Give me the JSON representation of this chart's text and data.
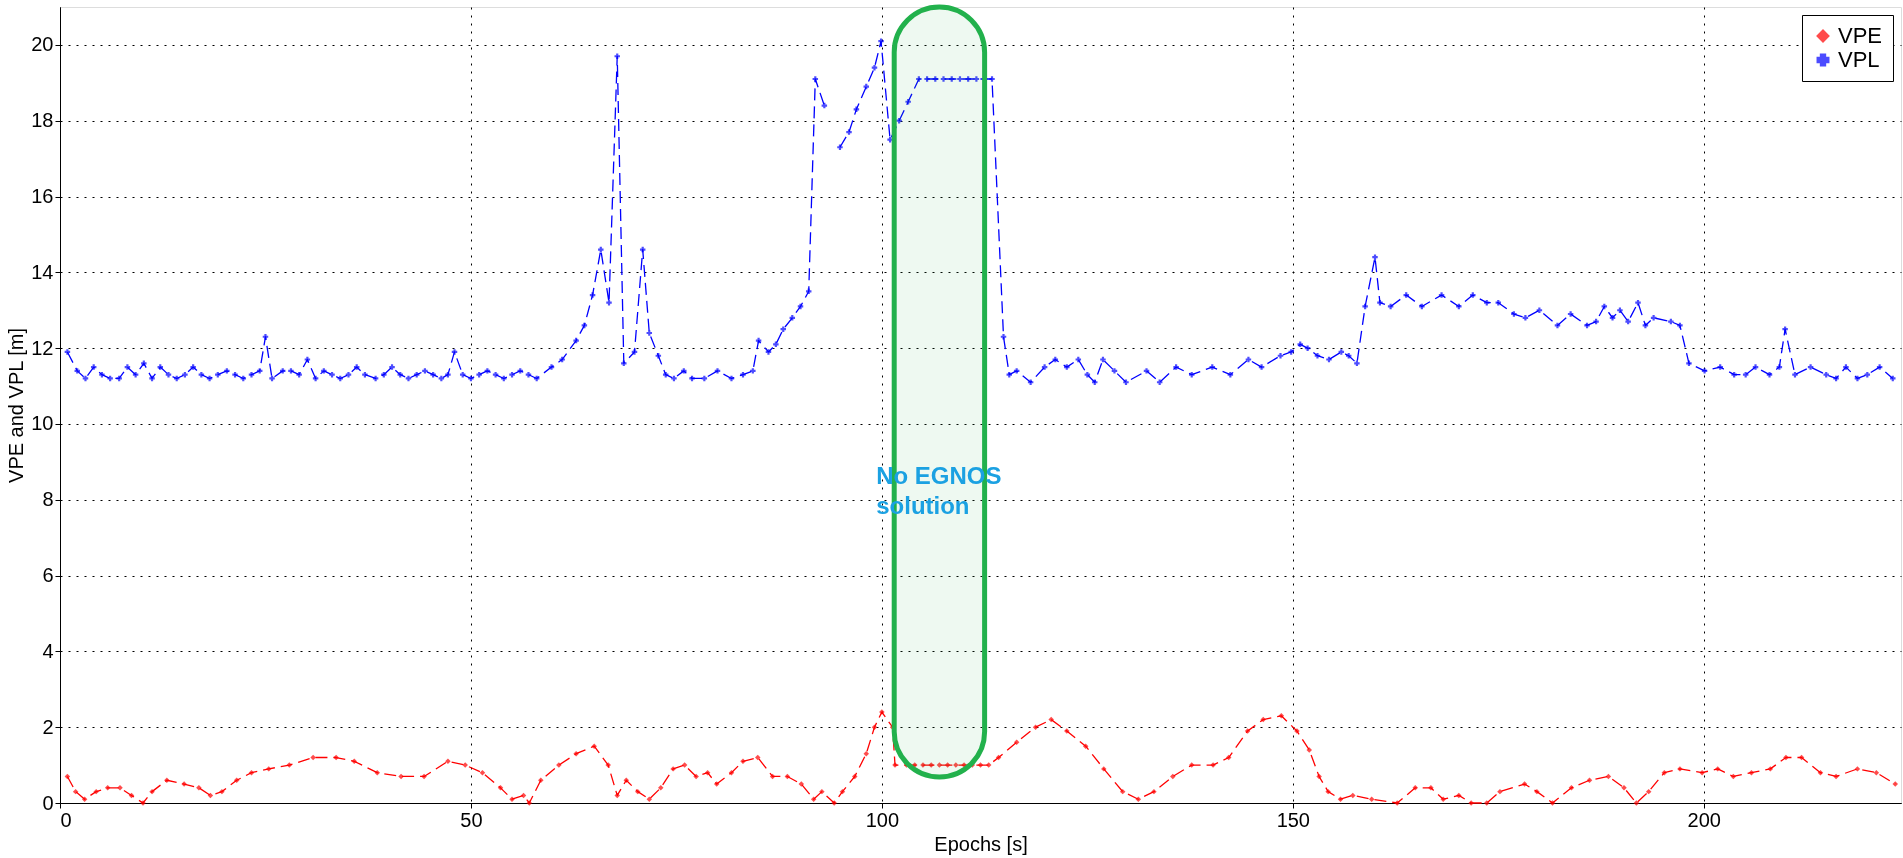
{
  "chart_data": {
    "type": "line",
    "xlabel": "Epochs [s]",
    "ylabel": "VPE and VPL [m]",
    "xlim": [
      0,
      224
    ],
    "xticks": [
      0,
      50,
      100,
      150,
      200
    ],
    "ylim": [
      0,
      21
    ],
    "yticks": [
      0,
      2,
      4,
      6,
      8,
      10,
      12,
      14,
      16,
      18,
      20
    ],
    "grid": true,
    "legend": "top right",
    "line_style": "dashed",
    "bands": [
      {
        "axis": "x",
        "from": 101.5,
        "to": 112.5,
        "label": "No EGNOS solution",
        "color": "#22b14c"
      }
    ],
    "series": [
      {
        "name": "VPE",
        "color": "#ff0000",
        "marker": "diamond",
        "x": [
          0.9,
          1.9,
          3.0,
          4.4,
          5.8,
          7.3,
          8.7,
          10.1,
          11.2,
          13.0,
          15.1,
          16.9,
          18.3,
          19.7,
          21.5,
          23.3,
          25.4,
          27.9,
          30.8,
          33.6,
          35.8,
          38.6,
          41.5,
          44.3,
          47.2,
          49.3,
          51.4,
          53.6,
          55.0,
          56.4,
          57.1,
          58.5,
          60.7,
          62.8,
          65.0,
          66.7,
          67.8,
          68.9,
          70.3,
          71.7,
          73.1,
          74.6,
          76.0,
          77.4,
          78.8,
          79.9,
          81.7,
          83.1,
          84.9,
          86.7,
          88.5,
          90.2,
          91.7,
          92.7,
          94.2,
          95.2,
          96.7,
          98.1,
          99.1,
          100.0,
          101.3,
          101.6,
          103,
          104,
          105,
          106,
          107,
          108,
          109,
          110,
          111,
          112,
          113,
          114.2,
          116.4,
          118.7,
          120.6,
          122.5,
          124.8,
          127.0,
          129.3,
          131.2,
          133.1,
          135.4,
          137.7,
          140.3,
          142.2,
          144.5,
          146.4,
          148.6,
          150.5,
          152.0,
          153.2,
          154.3,
          155.8,
          157.3,
          159.6,
          162.7,
          164.9,
          166.8,
          168.3,
          170.2,
          171.7,
          173.6,
          175.2,
          178.2,
          179.7,
          181.6,
          183.9,
          186.1,
          188.4,
          190.3,
          191.8,
          193.3,
          195.2,
          197.1,
          199.8,
          201.7,
          203.6,
          205.8,
          208.1,
          210.0,
          211.9,
          214.2,
          216.1,
          218.7,
          221.0,
          223.3
        ],
        "values": [
          0.7,
          0.3,
          0.1,
          0.3,
          0.4,
          0.4,
          0.2,
          0.0,
          0.3,
          0.6,
          0.5,
          0.4,
          0.2,
          0.3,
          0.6,
          0.8,
          0.9,
          1.0,
          1.2,
          1.2,
          1.1,
          0.8,
          0.7,
          0.7,
          1.1,
          1.0,
          0.8,
          0.4,
          0.1,
          0.2,
          0.0,
          0.6,
          1.0,
          1.3,
          1.5,
          1.0,
          0.2,
          0.6,
          0.3,
          0.1,
          0.4,
          0.9,
          1.0,
          0.7,
          0.8,
          0.5,
          0.8,
          1.1,
          1.2,
          0.7,
          0.7,
          0.5,
          0.1,
          0.3,
          0.0,
          0.3,
          0.7,
          1.3,
          2.0,
          2.4,
          2.0,
          1.0,
          1.0,
          1.0,
          1.0,
          1.0,
          1.0,
          1.0,
          1.0,
          1.0,
          1.0,
          1.0,
          1.0,
          1.2,
          1.6,
          2.0,
          2.2,
          1.9,
          1.5,
          0.9,
          0.3,
          0.1,
          0.3,
          0.7,
          1.0,
          1.0,
          1.2,
          1.9,
          2.2,
          2.3,
          1.9,
          1.4,
          0.7,
          0.3,
          0.1,
          0.2,
          0.1,
          0.0,
          0.4,
          0.4,
          0.1,
          0.2,
          0.0,
          0.0,
          0.3,
          0.5,
          0.3,
          0.0,
          0.4,
          0.6,
          0.7,
          0.4,
          0.0,
          0.3,
          0.8,
          0.9,
          0.8,
          0.9,
          0.7,
          0.8,
          0.9,
          1.2,
          1.2,
          0.8,
          0.7,
          0.9,
          0.8,
          0.5
        ]
      },
      {
        "name": "VPL",
        "color": "#0000ff",
        "marker": "cross",
        "x": [
          0.9,
          2.1,
          3.1,
          4.1,
          5.1,
          6.1,
          7.2,
          8.2,
          9.2,
          10.2,
          11.2,
          12.2,
          13.2,
          14.2,
          15.2,
          16.2,
          17.2,
          18.2,
          19.2,
          20.3,
          21.3,
          22.3,
          23.3,
          24.3,
          25.0,
          25.8,
          27.1,
          28.1,
          29.1,
          30.1,
          31.1,
          32.1,
          33.1,
          34.1,
          35.1,
          36.1,
          37.1,
          38.4,
          39.4,
          40.4,
          41.4,
          42.4,
          43.4,
          44.4,
          45.4,
          46.4,
          47.2,
          48.0,
          49.0,
          50.0,
          51.0,
          52.0,
          53.0,
          54.0,
          55.0,
          56.0,
          57.0,
          58.0,
          59.8,
          61.1,
          62.8,
          63.8,
          64.8,
          65.8,
          66.8,
          67.8,
          68.6,
          69.9,
          70.9,
          71.7,
          72.8,
          73.7,
          74.7,
          75.9,
          76.9,
          78.4,
          80.0,
          81.7,
          83.1,
          84.3,
          85.0,
          86.2,
          87.1,
          88.0,
          89.1,
          90.1,
          91.1,
          91.9,
          93.0,
          93.5,
          94.9,
          96.0,
          96.9,
          98.1,
          99.1,
          99.9,
          101.0,
          102.1,
          103.2,
          104.5,
          105.5,
          106.5,
          107.5,
          108.5,
          109.5,
          110.5,
          111.5,
          112.5,
          113.4,
          114.8,
          115.5,
          116.4,
          118.1,
          119.8,
          121.1,
          122.5,
          123.9,
          125.0,
          125.9,
          126.9,
          128.3,
          129.7,
          132.2,
          133.8,
          135.8,
          137.7,
          140.2,
          142.4,
          144.6,
          146.2,
          148.5,
          149.8,
          150.9,
          151.8,
          153.0,
          154.4,
          155.9,
          156.8,
          157.8,
          158.8,
          160.0,
          160.6,
          161.9,
          163.8,
          165.7,
          168.1,
          170.2,
          171.9,
          173.6,
          175.0,
          176.9,
          178.3,
          180.0,
          182.2,
          183.8,
          185.8,
          186.9,
          187.9,
          188.9,
          189.8,
          190.8,
          192.0,
          192.9,
          193.9,
          196.0,
          197.1,
          198.2,
          200.1,
          202.0,
          203.7,
          205.1,
          206.3,
          208.0,
          209.2,
          209.9,
          211.1,
          213.0,
          214.9,
          216.1,
          217.3,
          218.7,
          219.9,
          221.4,
          223.0
        ],
        "values": [
          11.9,
          11.4,
          11.2,
          11.5,
          11.3,
          11.2,
          11.2,
          11.5,
          11.3,
          11.6,
          11.2,
          11.5,
          11.3,
          11.2,
          11.3,
          11.5,
          11.3,
          11.2,
          11.3,
          11.4,
          11.3,
          11.2,
          11.3,
          11.4,
          12.3,
          11.2,
          11.4,
          11.4,
          11.3,
          11.7,
          11.2,
          11.4,
          11.3,
          11.2,
          11.3,
          11.5,
          11.3,
          11.2,
          11.3,
          11.5,
          11.3,
          11.2,
          11.3,
          11.4,
          11.3,
          11.2,
          11.3,
          11.9,
          11.3,
          11.2,
          11.3,
          11.4,
          11.3,
          11.2,
          11.3,
          11.4,
          11.3,
          11.2,
          11.5,
          11.7,
          12.2,
          12.6,
          13.4,
          14.6,
          13.2,
          19.7,
          11.6,
          11.9,
          14.6,
          12.4,
          11.8,
          11.3,
          11.2,
          11.4,
          11.2,
          11.2,
          11.4,
          11.2,
          11.3,
          11.4,
          12.2,
          11.9,
          12.1,
          12.5,
          12.8,
          13.1,
          13.5,
          19.1,
          18.4,
          null,
          17.3,
          17.7,
          18.3,
          18.9,
          19.4,
          20.1,
          17.5,
          18.0,
          18.5,
          19.1,
          19.1,
          19.1,
          19.1,
          19.1,
          19.1,
          19.1,
          19.1,
          19.1,
          19.1,
          12.3,
          11.3,
          11.4,
          11.1,
          11.5,
          11.7,
          11.5,
          11.7,
          11.3,
          11.1,
          11.7,
          11.4,
          11.1,
          11.4,
          11.1,
          11.5,
          11.3,
          11.5,
          11.3,
          11.7,
          11.5,
          11.8,
          11.9,
          12.1,
          12.0,
          11.8,
          11.7,
          11.9,
          11.8,
          11.6,
          13.1,
          14.4,
          13.2,
          13.1,
          13.4,
          13.1,
          13.4,
          13.1,
          13.4,
          13.2,
          13.2,
          12.9,
          12.8,
          13.0,
          12.6,
          12.9,
          12.6,
          12.7,
          13.1,
          12.8,
          13.0,
          12.7,
          13.2,
          12.6,
          12.8,
          12.7,
          12.6,
          11.6,
          11.4,
          11.5,
          11.3,
          11.3,
          11.5,
          11.3,
          11.5,
          12.5,
          11.3,
          11.5,
          11.3,
          11.2,
          11.5,
          11.2,
          11.3,
          11.5,
          11.2
        ]
      }
    ]
  }
}
